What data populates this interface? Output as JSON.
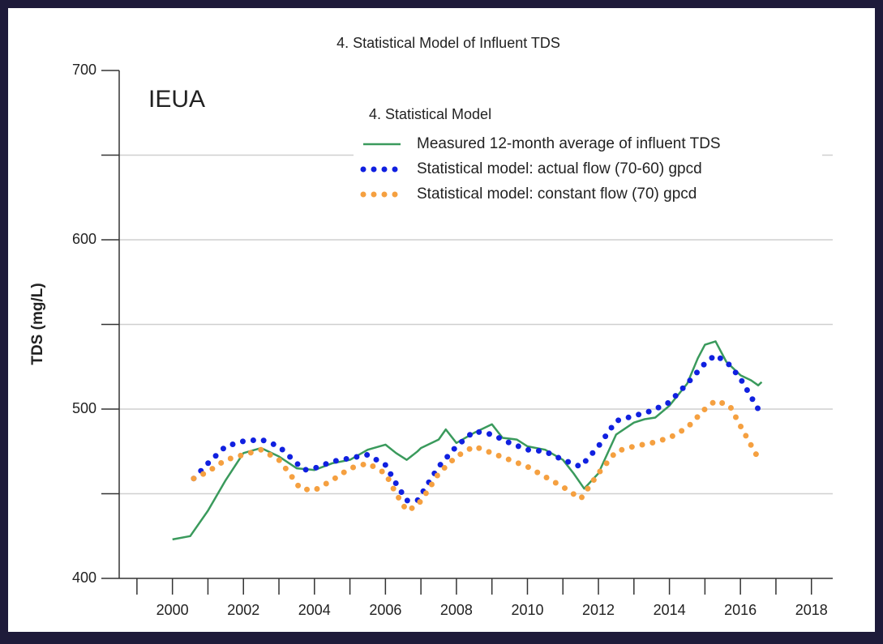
{
  "chart_data": {
    "type": "line",
    "title": "4. Statistical Model of Influent TDS",
    "ylabel": "TDS (mg/L)",
    "annotation": "IEUA",
    "legend_title": "4. Statistical Model",
    "legend": "upper right",
    "grid": true,
    "xlim": [
      1998.5,
      2018.6
    ],
    "xticks": [
      2000,
      2002,
      2004,
      2006,
      2008,
      2010,
      2012,
      2014,
      2016,
      2018
    ],
    "xminorticks": [
      1999,
      2001,
      2003,
      2005,
      2007,
      2009,
      2011,
      2013,
      2015,
      2017
    ],
    "ylim": [
      400,
      700
    ],
    "yticks": [
      400,
      500,
      600,
      700
    ],
    "yminorticks": [
      450,
      550,
      650
    ],
    "series": [
      {
        "name": "Measured 12-month average of influent TDS",
        "color": "#3a9a5c",
        "style": "solid",
        "x": [
          2000.0,
          2000.5,
          2001.0,
          2001.5,
          2002.0,
          2002.5,
          2003.0,
          2003.5,
          2004.0,
          2004.5,
          2005.0,
          2005.5,
          2006.0,
          2006.3,
          2006.6,
          2006.9,
          2007.0,
          2007.5,
          2007.7,
          2008.0,
          2008.5,
          2009.0,
          2009.3,
          2009.7,
          2010.0,
          2010.5,
          2011.0,
          2011.3,
          2011.6,
          2012.0,
          2012.5,
          2013.0,
          2013.3,
          2013.6,
          2014.0,
          2014.5,
          2014.8,
          2015.0,
          2015.3,
          2015.6,
          2016.0,
          2016.3,
          2016.5,
          2016.6
        ],
        "values": [
          423,
          425,
          440,
          458,
          474,
          477,
          472,
          465,
          464,
          468,
          470,
          476,
          479,
          474,
          470,
          475,
          477,
          482,
          488,
          480,
          486,
          491,
          483,
          482,
          478,
          476,
          470,
          462,
          453,
          462,
          485,
          492,
          494,
          495,
          502,
          515,
          530,
          538,
          540,
          528,
          520,
          517,
          514,
          516
        ]
      },
      {
        "name": "Statistical model: actual flow (70-60) gpcd",
        "color": "#1020e0",
        "style": "dotted",
        "x": [
          2000.6,
          2001.0,
          2001.5,
          2002.0,
          2002.5,
          2003.0,
          2003.3,
          2003.7,
          2004.0,
          2004.5,
          2005.0,
          2005.5,
          2006.0,
          2006.3,
          2006.6,
          2006.9,
          2007.2,
          2007.5,
          2008.0,
          2008.5,
          2009.0,
          2009.5,
          2010.0,
          2010.5,
          2011.0,
          2011.5,
          2012.0,
          2012.5,
          2013.0,
          2013.5,
          2014.0,
          2014.5,
          2015.0,
          2015.3,
          2015.7,
          2016.0,
          2016.5
        ],
        "values": [
          459,
          468,
          478,
          481,
          482,
          478,
          472,
          464,
          465,
          469,
          471,
          473,
          467,
          456,
          446,
          446,
          456,
          466,
          478,
          487,
          485,
          480,
          476,
          475,
          470,
          466,
          478,
          493,
          496,
          499,
          504,
          515,
          527,
          532,
          526,
          518,
          500
        ]
      },
      {
        "name": "Statistical model: constant flow (70) gpcd",
        "color": "#f5a040",
        "style": "dotted",
        "x": [
          2000.6,
          2001.0,
          2001.5,
          2002.0,
          2002.5,
          2003.0,
          2003.3,
          2003.6,
          2004.0,
          2004.5,
          2005.0,
          2005.5,
          2006.0,
          2006.3,
          2006.6,
          2006.9,
          2007.2,
          2007.5,
          2008.0,
          2008.5,
          2009.0,
          2009.5,
          2010.0,
          2010.5,
          2011.0,
          2011.5,
          2012.0,
          2012.5,
          2013.0,
          2013.5,
          2014.0,
          2014.5,
          2015.0,
          2015.3,
          2015.7,
          2016.0,
          2016.5
        ],
        "values": [
          459,
          463,
          470,
          473,
          476,
          470,
          462,
          453,
          452,
          458,
          465,
          468,
          462,
          450,
          440,
          443,
          452,
          462,
          472,
          478,
          474,
          470,
          466,
          460,
          454,
          447,
          462,
          475,
          478,
          480,
          483,
          489,
          500,
          505,
          502,
          490,
          471
        ]
      }
    ]
  }
}
